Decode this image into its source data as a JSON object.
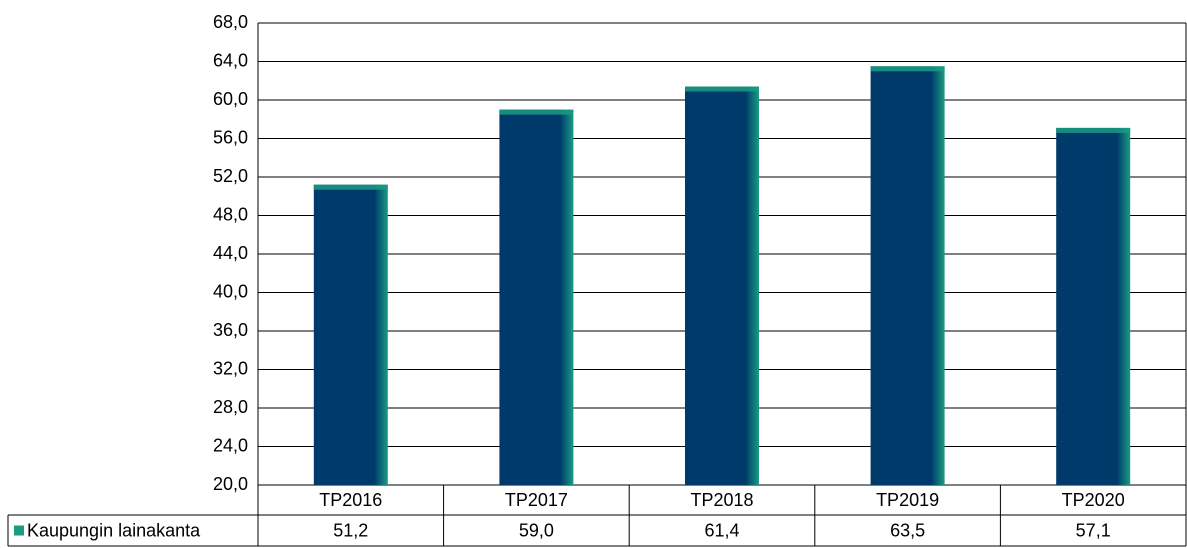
{
  "chart_data": {
    "type": "bar",
    "categories": [
      "TP2016",
      "TP2017",
      "TP2018",
      "TP2019",
      "TP2020"
    ],
    "series": [
      {
        "name": "Kaupungin lainakanta",
        "color": "#003a6b",
        "values": [
          51.2,
          59.0,
          61.4,
          63.5,
          57.1
        ],
        "value_labels": [
          "51,2",
          "59,0",
          "61,4",
          "63,5",
          "57,1"
        ]
      }
    ],
    "ylim": [
      20,
      68
    ],
    "yticks": [
      {
        "value": 20,
        "label": "20,0"
      },
      {
        "value": 24,
        "label": "24,0"
      },
      {
        "value": 28,
        "label": "28,0"
      },
      {
        "value": 32,
        "label": "32,0"
      },
      {
        "value": 36,
        "label": "36,0"
      },
      {
        "value": 40,
        "label": "40,0"
      },
      {
        "value": 44,
        "label": "44,0"
      },
      {
        "value": 48,
        "label": "48,0"
      },
      {
        "value": 52,
        "label": "52,0"
      },
      {
        "value": 56,
        "label": "56,0"
      },
      {
        "value": 60,
        "label": "60,0"
      },
      {
        "value": 64,
        "label": "64,0"
      },
      {
        "value": 68,
        "label": "68,0"
      }
    ],
    "grid": true
  }
}
